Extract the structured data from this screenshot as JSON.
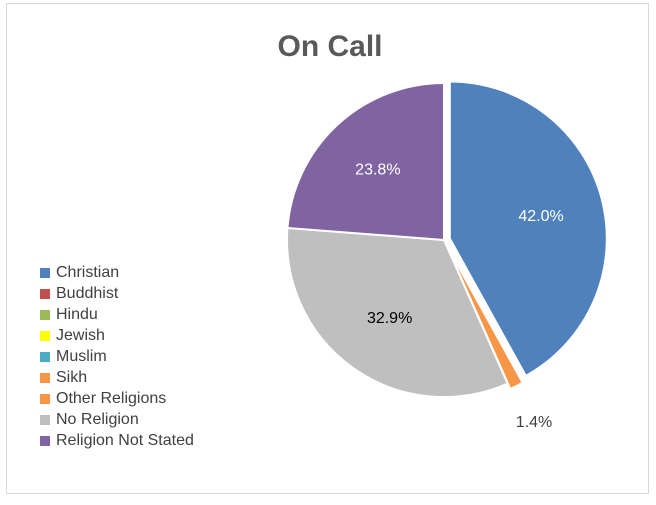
{
  "chart_data": {
    "type": "pie",
    "title": "On Call",
    "legend_position": "left",
    "categories": [
      "Christian",
      "Buddhist",
      "Hindu",
      "Jewish",
      "Muslim",
      "Sikh",
      "Other Religions",
      "No Religion",
      "Religion Not Stated"
    ],
    "values": [
      42.0,
      0,
      0,
      0,
      0,
      0,
      1.4,
      32.9,
      23.8
    ],
    "labels": [
      "42.0%",
      "",
      "",
      "",
      "",
      "",
      "1.4%",
      "32.9%",
      "23.8%"
    ],
    "colors": [
      "#4f81bd",
      "#c0504d",
      "#9bbb59",
      "#ffff00",
      "#4bacc6",
      "#f79646",
      "#f79646",
      "#bfbfbf",
      "#8064a2"
    ],
    "label_colors": [
      "#ffffff",
      "#404040",
      "#404040",
      "#404040",
      "#404040",
      "#404040",
      "#404040",
      "#000000",
      "#ffffff"
    ]
  }
}
